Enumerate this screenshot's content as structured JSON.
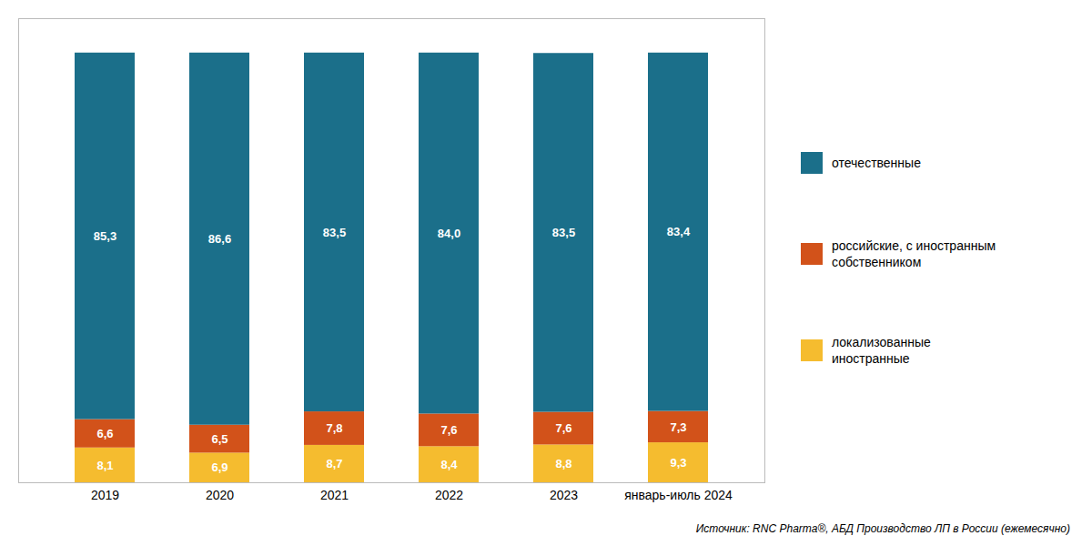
{
  "chart_data": {
    "type": "bar",
    "stacked": true,
    "categories": [
      "2019",
      "2020",
      "2021",
      "2022",
      "2023",
      "январь-июль 2024"
    ],
    "series": [
      {
        "name": "локализованные\nиностранные",
        "color": "#f5bc2f",
        "values": [
          8.1,
          6.9,
          8.7,
          8.4,
          8.8,
          9.3
        ],
        "value_labels": [
          "8,1",
          "6,9",
          "8,7",
          "8,4",
          "8,8",
          "9,3"
        ]
      },
      {
        "name": "российские, с иностранным\nсобственником",
        "color": "#d2521a",
        "values": [
          6.6,
          6.5,
          7.8,
          7.6,
          7.6,
          7.3
        ],
        "value_labels": [
          "6,6",
          "6,5",
          "7,8",
          "7,6",
          "7,6",
          "7,3"
        ]
      },
      {
        "name": "отечественные",
        "color": "#1b6f8a",
        "values": [
          85.3,
          86.6,
          83.5,
          84.0,
          83.5,
          83.4
        ],
        "value_labels": [
          "85,3",
          "86,6",
          "83,5",
          "84,0",
          "83,5",
          "83,4"
        ]
      }
    ],
    "ylim": [
      0,
      108
    ],
    "tick_labels": "x",
    "grid": false,
    "legend": "right",
    "data_labels": true,
    "caption": "Источник: RNC Pharma®, АБД Производство ЛП в России (ежемесячно)"
  }
}
